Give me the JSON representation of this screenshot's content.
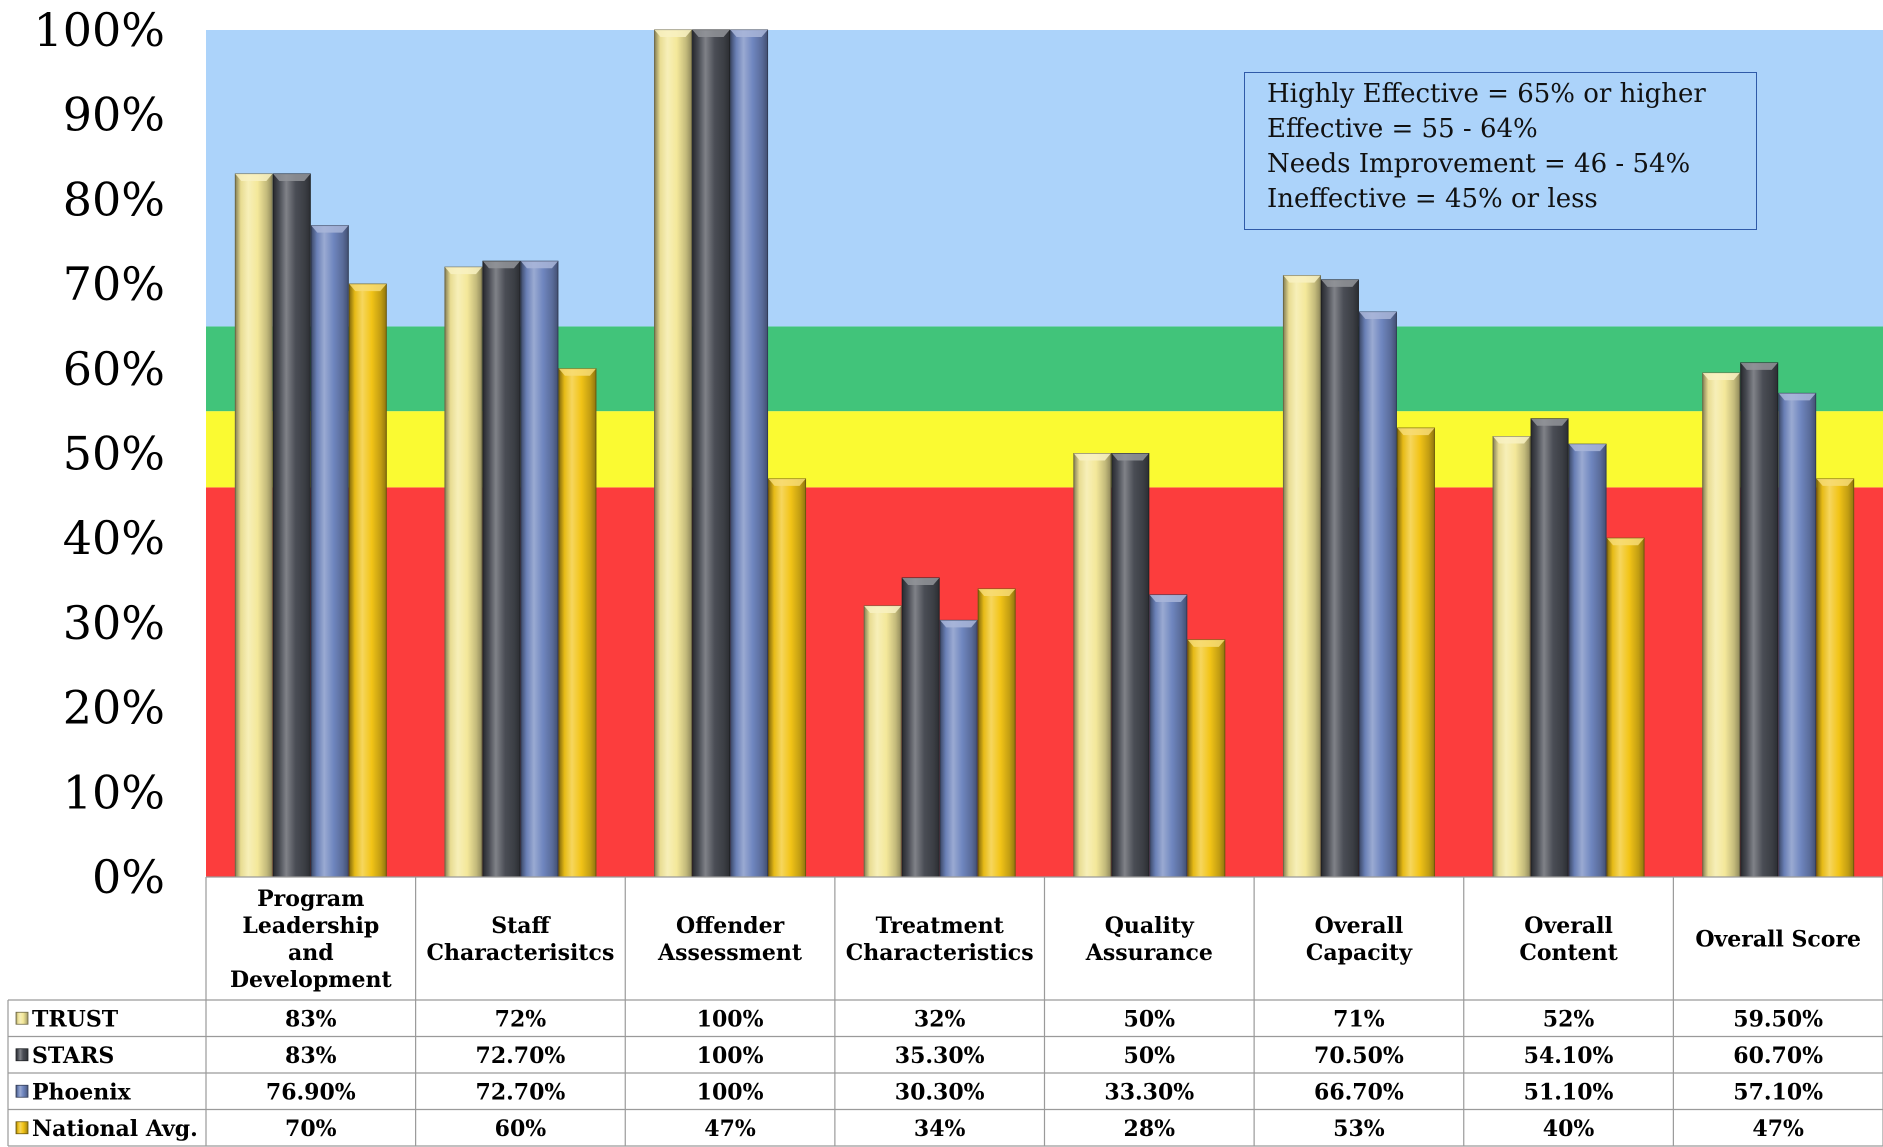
{
  "chart_data": {
    "type": "bar",
    "categories": [
      [
        "Program",
        "Leadership",
        "and",
        "Development"
      ],
      [
        "Staff",
        "Characterisitcs"
      ],
      [
        "Offender",
        "Assessment"
      ],
      [
        "Treatment",
        "Characteristics"
      ],
      [
        "Quality",
        "Assurance"
      ],
      [
        "Overall",
        "Capacity"
      ],
      [
        "Overall",
        "Content"
      ],
      [
        "Overall Score"
      ]
    ],
    "y_ticks": [
      "0%",
      "10%",
      "20%",
      "30%",
      "40%",
      "50%",
      "60%",
      "70%",
      "80%",
      "90%",
      "100%"
    ],
    "ylim": [
      0,
      100
    ],
    "bands": [
      {
        "from": 0,
        "to": 46,
        "color": "#fc3d3d"
      },
      {
        "from": 46,
        "to": 55,
        "color": "#fafa32"
      },
      {
        "from": 55,
        "to": 65,
        "color": "#41c47a"
      },
      {
        "from": 65,
        "to": 100,
        "color": "#acd3fa"
      }
    ],
    "legend_lines": [
      "Highly Effective = 65% or higher",
      "Effective = 55 - 64%",
      "Needs Improvement =  46 - 54%",
      "Ineffective = 45% or less"
    ],
    "series": [
      {
        "name": "TRUST",
        "color": "#f4e89a",
        "values": [
          83,
          72,
          100,
          32,
          50,
          71,
          52,
          59.5
        ],
        "labels": [
          "83%",
          "72%",
          "100%",
          "32%",
          "50%",
          "71%",
          "52%",
          "59.50%"
        ]
      },
      {
        "name": "STARS",
        "color": "#4a4d55",
        "values": [
          83,
          72.7,
          100,
          35.3,
          50,
          70.5,
          54.1,
          60.7
        ],
        "labels": [
          "83%",
          "72.70%",
          "100%",
          "35.30%",
          "50%",
          "70.50%",
          "54.10%",
          "60.70%"
        ]
      },
      {
        "name": "Phoenix",
        "color": "#6f86bf",
        "values": [
          76.9,
          72.7,
          100,
          30.3,
          33.3,
          66.7,
          51.1,
          57.1
        ],
        "labels": [
          "76.90%",
          "72.70%",
          "100%",
          "30.30%",
          "33.30%",
          "66.70%",
          "51.10%",
          "57.10%"
        ]
      },
      {
        "name": "National Avg.",
        "color": "#f2c417",
        "values": [
          70,
          60,
          47,
          34,
          28,
          53,
          40,
          47
        ],
        "labels": [
          "70%",
          "60%",
          "47%",
          "34%",
          "28%",
          "53%",
          "40%",
          "47%"
        ]
      }
    ]
  }
}
